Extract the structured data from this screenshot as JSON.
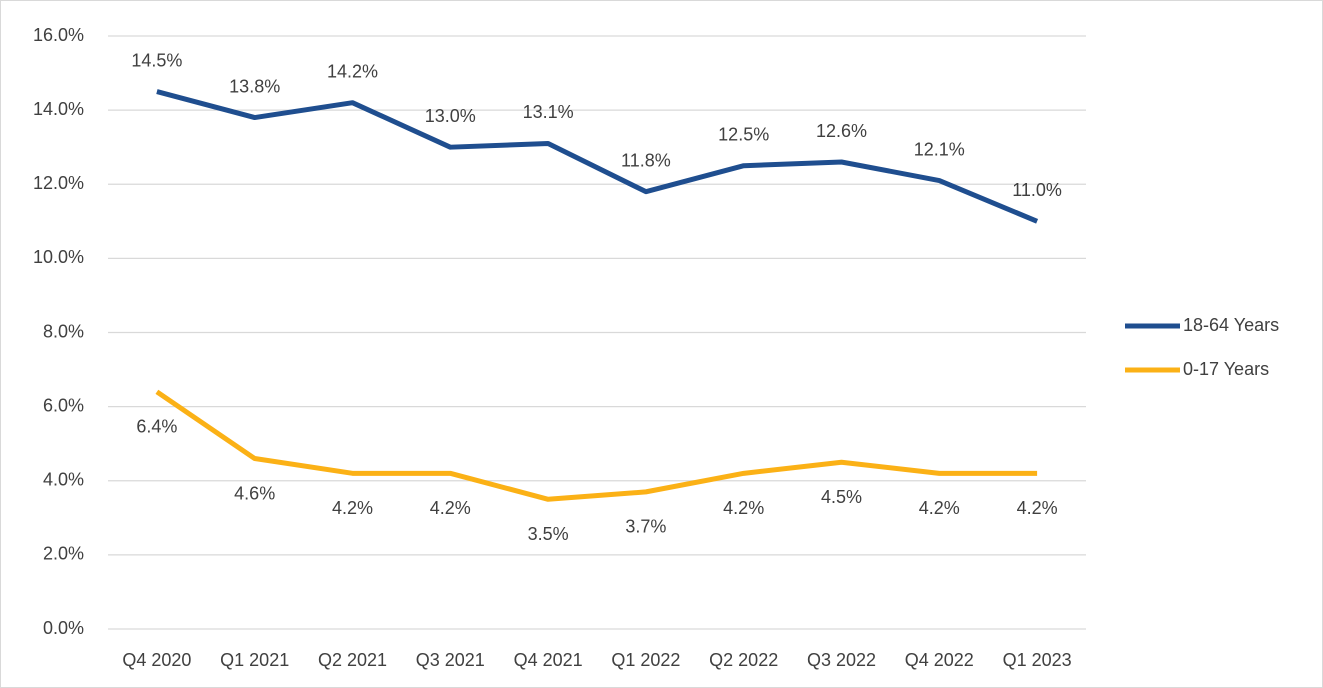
{
  "chart_data": {
    "type": "line",
    "categories": [
      "Q4 2020",
      "Q1 2021",
      "Q2 2021",
      "Q3 2021",
      "Q4 2021",
      "Q1 2022",
      "Q2 2022",
      "Q3 2022",
      "Q4 2022",
      "Q1 2023"
    ],
    "series": [
      {
        "name": "18-64 Years",
        "color": "#1F4E8F",
        "values": [
          14.5,
          13.8,
          14.2,
          13.0,
          13.1,
          11.8,
          12.5,
          12.6,
          12.1,
          11.0
        ],
        "value_labels": [
          "14.5%",
          "13.8%",
          "14.2%",
          "13.0%",
          "13.1%",
          "11.8%",
          "12.5%",
          "12.6%",
          "12.1%",
          "11.0%"
        ]
      },
      {
        "name": "0-17 Years",
        "color": "#FBB116",
        "values": [
          6.4,
          4.6,
          4.2,
          4.2,
          3.5,
          3.7,
          4.2,
          4.5,
          4.2,
          4.2
        ],
        "value_labels": [
          "6.4%",
          "4.6%",
          "4.2%",
          "4.2%",
          "3.5%",
          "3.7%",
          "4.2%",
          "4.5%",
          "4.2%",
          "4.2%"
        ]
      }
    ],
    "ylim": [
      0,
      16
    ],
    "yticks": [
      {
        "value": 0,
        "label": "0.0%"
      },
      {
        "value": 2,
        "label": "2.0%"
      },
      {
        "value": 4,
        "label": "4.0%"
      },
      {
        "value": 6,
        "label": "6.0%"
      },
      {
        "value": 8,
        "label": "8.0%"
      },
      {
        "value": 10,
        "label": "10.0%"
      },
      {
        "value": 12,
        "label": "12.0%"
      },
      {
        "value": 14,
        "label": "14.0%"
      },
      {
        "value": 16,
        "label": "16.0%"
      }
    ],
    "grid": true,
    "legend": "right"
  }
}
